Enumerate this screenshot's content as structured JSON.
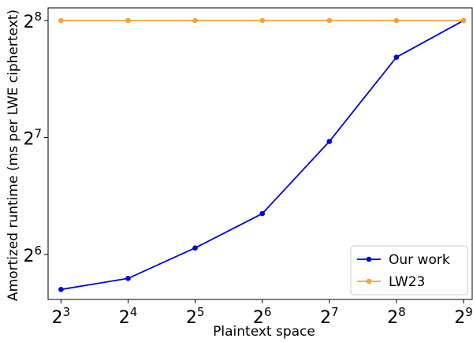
{
  "chart_data": {
    "type": "line",
    "xlabel": "Plaintext space",
    "ylabel": "Amortized runtime (ms per LWE ciphertext)",
    "x_ticks": [
      {
        "base": "2",
        "exp": "3",
        "value": 8
      },
      {
        "base": "2",
        "exp": "4",
        "value": 16
      },
      {
        "base": "2",
        "exp": "5",
        "value": 32
      },
      {
        "base": "2",
        "exp": "6",
        "value": 64
      },
      {
        "base": "2",
        "exp": "7",
        "value": 128
      },
      {
        "base": "2",
        "exp": "8",
        "value": 256
      },
      {
        "base": "2",
        "exp": "9",
        "value": 512
      }
    ],
    "y_ticks": [
      {
        "base": "2",
        "exp": "6",
        "value": 64
      },
      {
        "base": "2",
        "exp": "7",
        "value": 128
      },
      {
        "base": "2",
        "exp": "8",
        "value": 256
      }
    ],
    "x_scale": "log2",
    "y_scale": "log2",
    "xlim": [
      7.0,
      560.0
    ],
    "ylim": [
      49.0,
      276.0
    ],
    "x": [
      8,
      16,
      32,
      64,
      128,
      256,
      512
    ],
    "series": [
      {
        "name": "Our work",
        "color": "#0000e6",
        "values": [
          52.0,
          55.5,
          66.5,
          81.5,
          125.0,
          206.0,
          256.0
        ]
      },
      {
        "name": "LW23",
        "color": "#f5a23b",
        "values": [
          256.0,
          256.0,
          256.0,
          256.0,
          256.0,
          256.0,
          256.0
        ]
      }
    ],
    "legend_position": "bottom-right",
    "grid": false
  }
}
